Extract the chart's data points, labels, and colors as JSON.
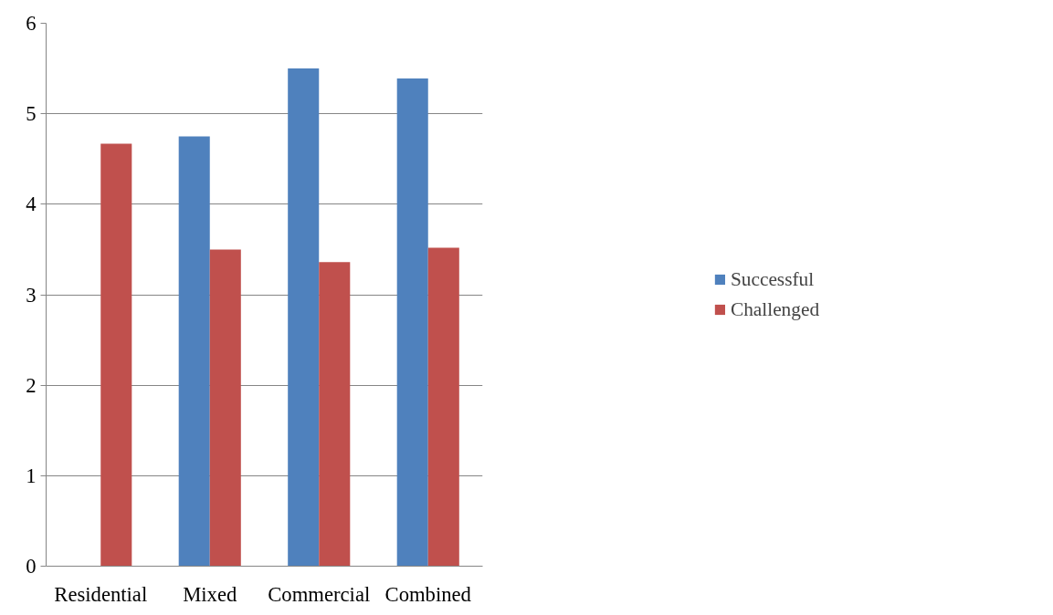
{
  "chart_data": {
    "type": "bar",
    "categories": [
      "Residential",
      "Mixed",
      "Commercial",
      "Combined"
    ],
    "series": [
      {
        "name": "Successful",
        "color": "#4f81bd",
        "values": [
          0,
          4.75,
          5.5,
          5.39
        ]
      },
      {
        "name": "Challenged",
        "color": "#c0504d",
        "values": [
          4.67,
          3.5,
          3.36,
          3.52
        ]
      }
    ],
    "ylim": [
      0,
      6
    ],
    "yticks": [
      0,
      1,
      2,
      3,
      4,
      5,
      6
    ],
    "grid": "y",
    "legend": "right"
  }
}
